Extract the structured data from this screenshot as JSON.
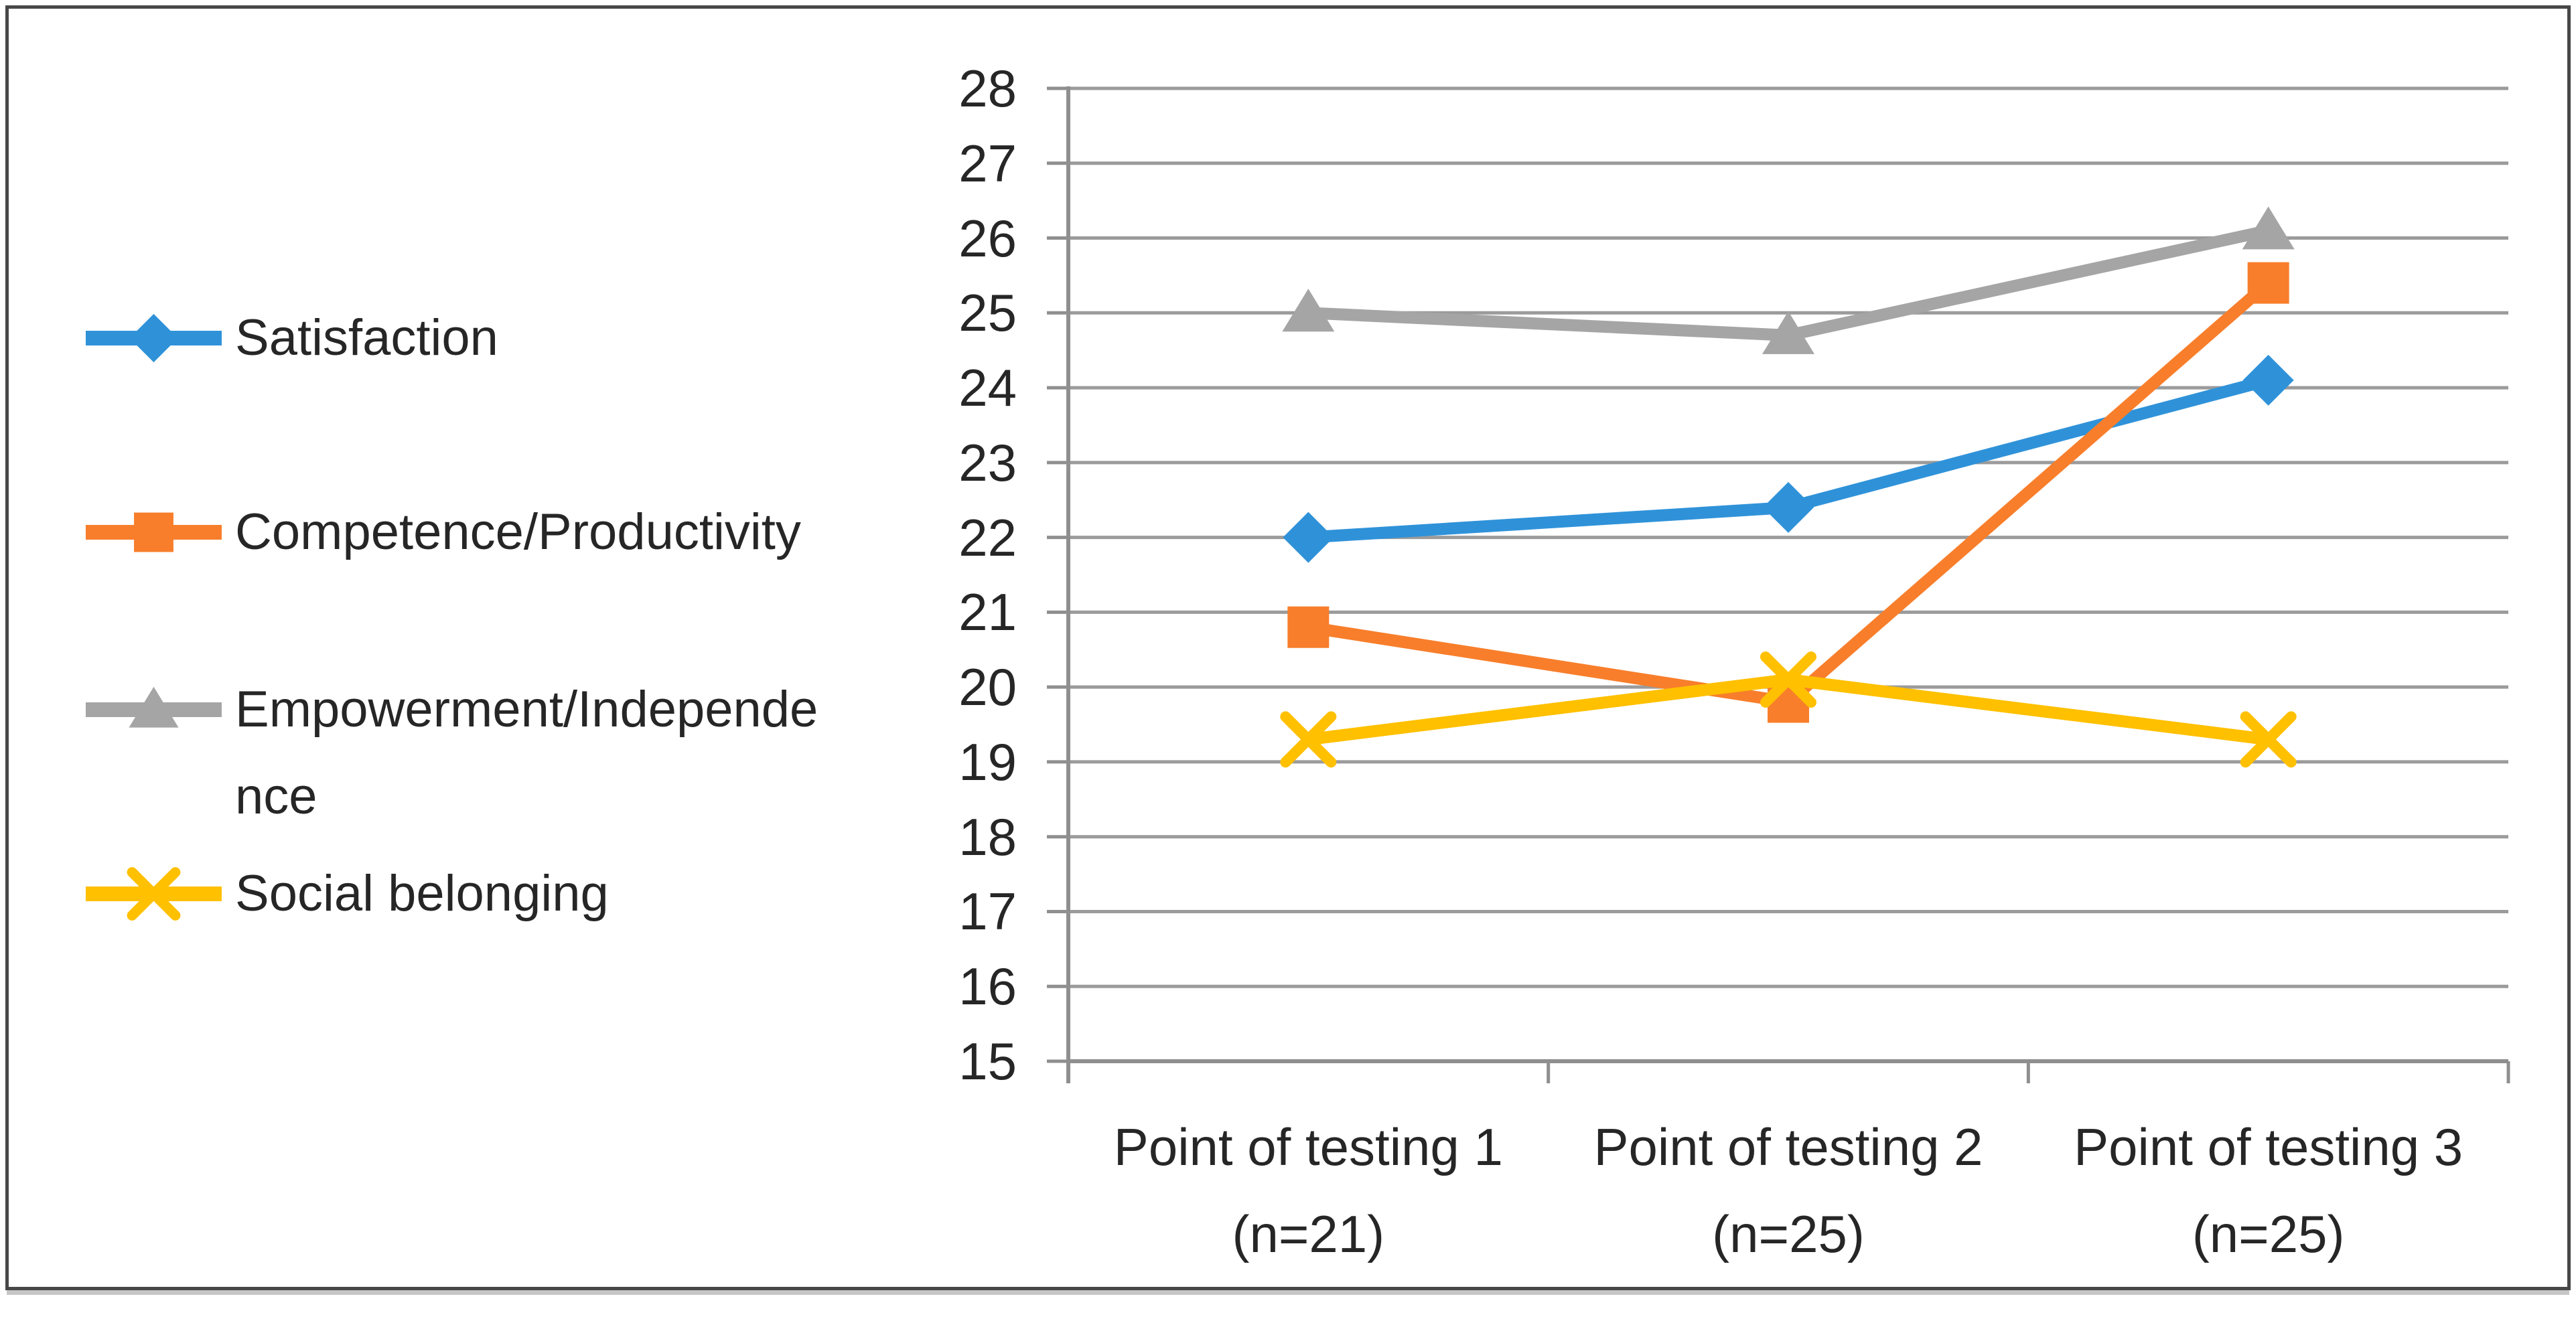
{
  "figure": {
    "background": "#FFFFFF",
    "border_color": "#474747",
    "text_color": "#262626",
    "axis_color": "#8F8F8F",
    "gridline_color": "#9B9B9B"
  },
  "chart_data": {
    "type": "line",
    "title": "",
    "xlabel": "",
    "ylabel": "",
    "grid": true,
    "legend_position": "left",
    "ylim": [
      15,
      28
    ],
    "ytick_step": 1,
    "categories": [
      {
        "lines": [
          "Point of testing 1",
          "(n=21)"
        ]
      },
      {
        "lines": [
          "Point of testing 2",
          "(n=25)"
        ]
      },
      {
        "lines": [
          "Point of testing 3",
          "(n=25)"
        ]
      }
    ],
    "series": [
      {
        "name": "Satisfaction",
        "legend_lines": [
          "Satisfaction"
        ],
        "marker": "diamond",
        "color": "#2F92D9",
        "values": [
          22.0,
          22.4,
          24.1
        ]
      },
      {
        "name": "Competence/Productivity",
        "legend_lines": [
          "Competence/Productivity"
        ],
        "marker": "square",
        "color": "#F87E2B",
        "values": [
          20.8,
          19.8,
          25.4
        ]
      },
      {
        "name": "Empowerment/Independence",
        "legend_lines": [
          "Empowerment/Independe",
          "nce"
        ],
        "marker": "triangle",
        "color": "#A5A5A5",
        "values": [
          25.0,
          24.7,
          26.1
        ]
      },
      {
        "name": "Social belonging",
        "legend_lines": [
          "Social belonging"
        ],
        "marker": "x",
        "color": "#FFC000",
        "values": [
          19.3,
          20.1,
          19.3
        ]
      }
    ]
  }
}
